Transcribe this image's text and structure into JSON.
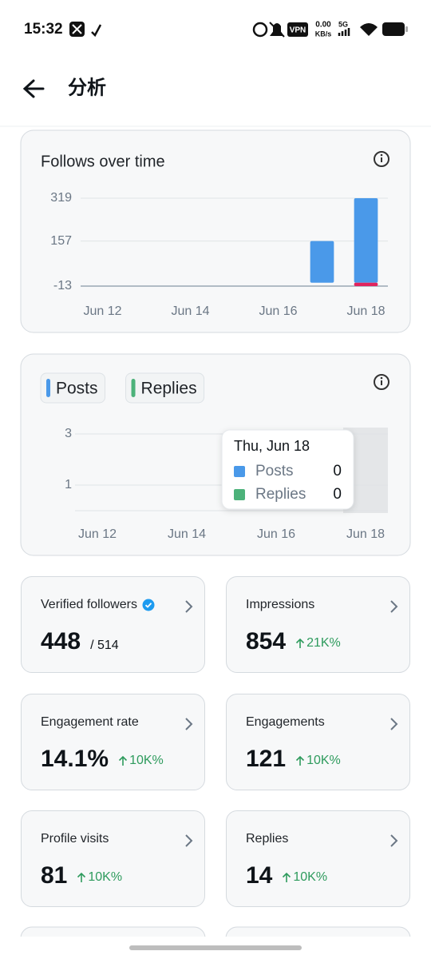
{
  "status_bar": {
    "time": "15:32",
    "vpn": "VPN",
    "speed": "0.00",
    "speed_unit": "KB/s",
    "network": "5G"
  },
  "header": {
    "title": "分析"
  },
  "chart_data": [
    {
      "type": "bar",
      "title": "Follows over time",
      "categories": [
        "Jun 12",
        null,
        "Jun 14",
        null,
        "Jun 16",
        null,
        "Jun 18"
      ],
      "series": [
        {
          "color": "#4a99e9",
          "values": [
            0,
            0,
            0,
            0,
            0,
            157,
            319
          ]
        },
        {
          "color": "#e0245e",
          "values": [
            0,
            0,
            0,
            0,
            0,
            0,
            -13
          ]
        }
      ],
      "ylim": [
        -13,
        319
      ],
      "yticks": [
        319,
        157,
        -13
      ],
      "grid": true
    },
    {
      "type": "bar",
      "categories": [
        "Jun 12",
        null,
        "Jun 14",
        null,
        "Jun 16",
        null,
        "Jun 18"
      ],
      "series": [
        {
          "name": "Posts",
          "color": "#4a99e9",
          "values": [
            0,
            0,
            0,
            0,
            0,
            0,
            0
          ]
        },
        {
          "name": "Replies",
          "color": "#4cb27a",
          "values": [
            0,
            0,
            0,
            0,
            0,
            0,
            0
          ]
        }
      ],
      "ylim": [
        0,
        3
      ],
      "yticks": [
        3,
        1
      ],
      "grid": true,
      "tooltip": {
        "title": "Thu, Jun 18",
        "index": 6
      }
    }
  ],
  "cards": [
    {
      "label": "Verified followers",
      "value": "448",
      "detail": "/ 514"
    },
    {
      "label": "Impressions",
      "value": "854",
      "change": "21K%"
    },
    {
      "label": "Engagement rate",
      "value": "14.1%",
      "change": "10K%"
    },
    {
      "label": "Engagements",
      "value": "121",
      "change": "10K%"
    },
    {
      "label": "Profile visits",
      "value": "81",
      "change": "10K%"
    },
    {
      "label": "Replies",
      "value": "14",
      "change": "10K%"
    }
  ]
}
